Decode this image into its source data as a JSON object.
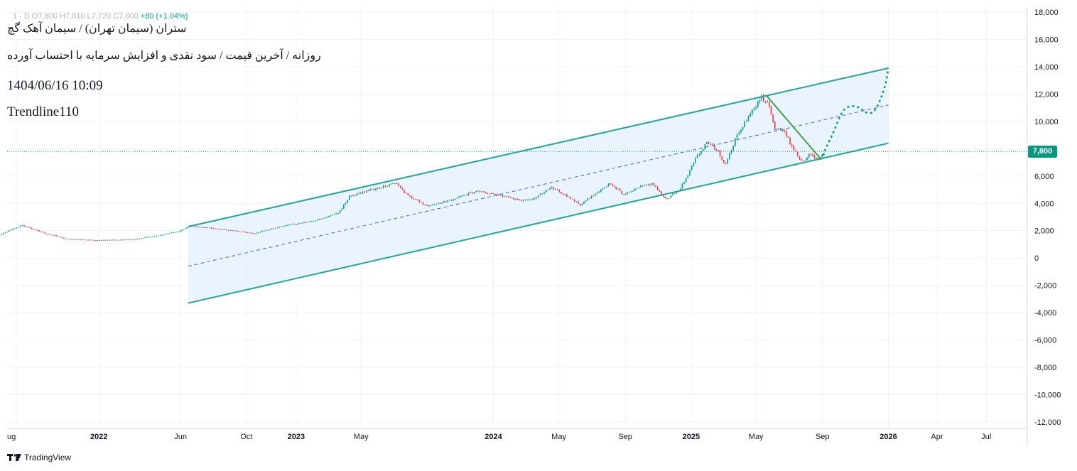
{
  "header": {
    "ohlc_text": "1 · D O7,800 H7,810 L7,720 C7,800",
    "change_text": "+80 (+1.04%)"
  },
  "info": {
    "line1": "ستران (سیمان تهران) / سیمان آهک گچ",
    "line2": "روزانه / آخرین قیمت / سود نقدی و افزایش سرمایه با احتساب آورده",
    "line3": "1404/06/16 10:09",
    "line4": "Trendline110"
  },
  "price_badge": "7,800",
  "brand": {
    "name": "TradingView",
    "logo_icon": "tradingview-logo-icon"
  },
  "colors": {
    "up": "#089981",
    "down": "#f23645",
    "channel": "#26a69a",
    "channel_fill": "#e3f0fd",
    "midline": "#3d64d8",
    "downtrend": "#43a047",
    "grid": "#f0f3fa"
  },
  "chart_data": {
    "type": "line",
    "title": "",
    "xlabel": "",
    "ylabel": "",
    "ylim": [
      -12000,
      18000
    ],
    "grid": true,
    "y_ticks": [
      "18,000",
      "16,000",
      "14,000",
      "12,000",
      "10,000",
      "8,000",
      "6,000",
      "4,000",
      "2,000",
      "0",
      "-2,000",
      "-4,000",
      "-6,000",
      "-8,000",
      "-10,000",
      "-12,000"
    ],
    "y_tick_values": [
      18000,
      16000,
      14000,
      12000,
      10000,
      8000,
      6000,
      4000,
      2000,
      0,
      -2000,
      -4000,
      -6000,
      -8000,
      -10000,
      -12000
    ],
    "x_ticks": [
      {
        "label": "ug",
        "date": "2021-08-01",
        "bold": false
      },
      {
        "label": "2022",
        "date": "2022-01-01",
        "bold": true
      },
      {
        "label": "Jun",
        "date": "2022-06-01",
        "bold": false
      },
      {
        "label": "Oct",
        "date": "2022-10-01",
        "bold": false
      },
      {
        "label": "2023",
        "date": "2023-01-01",
        "bold": true
      },
      {
        "label": "May",
        "date": "2023-05-01",
        "bold": false
      },
      {
        "label": "2024",
        "date": "2024-01-01",
        "bold": true
      },
      {
        "label": "May",
        "date": "2024-05-01",
        "bold": false
      },
      {
        "label": "Sep",
        "date": "2024-09-01",
        "bold": false
      },
      {
        "label": "2025",
        "date": "2025-01-01",
        "bold": true
      },
      {
        "label": "May",
        "date": "2025-05-01",
        "bold": false
      },
      {
        "label": "Sep",
        "date": "2025-09-01",
        "bold": false
      },
      {
        "label": "2026",
        "date": "2026-01-01",
        "bold": true
      },
      {
        "label": "Apr",
        "date": "2026-04-01",
        "bold": false
      },
      {
        "label": "Jul",
        "date": "2026-07-01",
        "bold": false
      }
    ],
    "series": [
      {
        "values_date": [
          "2021-07-01",
          "2021-08-10",
          "2021-09-15",
          "2021-11-01",
          "2022-01-01",
          "2022-03-01",
          "2022-04-15",
          "2022-06-01",
          "2022-06-20",
          "2022-08-15",
          "2022-10-15",
          "2022-12-01",
          "2023-01-15",
          "2023-02-20",
          "2023-03-20",
          "2023-04-10",
          "2023-05-10",
          "2023-06-10",
          "2023-07-05",
          "2023-07-25",
          "2023-09-01",
          "2023-10-10",
          "2023-12-01",
          "2024-01-10",
          "2024-02-20",
          "2024-03-20",
          "2024-04-15",
          "2024-05-05",
          "2024-06-10",
          "2024-07-10",
          "2024-08-05",
          "2024-08-30",
          "2024-09-30",
          "2024-10-20",
          "2024-11-15",
          "2024-12-10",
          "2024-12-25",
          "2025-01-10",
          "2025-02-01",
          "2025-02-20",
          "2025-03-05",
          "2025-03-25",
          "2025-04-15",
          "2025-05-10",
          "2025-05-25",
          "2025-06-05",
          "2025-06-20",
          "2025-07-05",
          "2025-07-25",
          "2025-08-10",
          "2025-08-25",
          "2025-09-07"
        ],
        "values": [
          1700,
          2400,
          1900,
          1400,
          1300,
          1350,
          1600,
          2000,
          2350,
          2100,
          1800,
          2300,
          2600,
          2900,
          3300,
          4500,
          4900,
          5200,
          5500,
          4600,
          3800,
          4200,
          4900,
          4600,
          4200,
          4400,
          5200,
          4800,
          3900,
          4800,
          5500,
          4600,
          5300,
          5500,
          4300,
          5000,
          6000,
          7300,
          8500,
          7800,
          6800,
          8800,
          10200,
          11800,
          11200,
          9300,
          9500,
          8200,
          7100,
          7600,
          7300,
          7800
        ]
      }
    ],
    "channel": {
      "upper": {
        "x": [
          "2022-06-15",
          "2026-01-01"
        ],
        "y": [
          2300,
          13900
        ]
      },
      "middle": {
        "x": [
          "2022-06-15",
          "2026-01-01"
        ],
        "y": [
          -600,
          11200
        ]
      },
      "lower": {
        "x": [
          "2022-06-15",
          "2026-01-01"
        ],
        "y": [
          -3300,
          8400
        ]
      }
    },
    "downtrend_line": {
      "x": [
        "2025-05-20",
        "2025-08-30"
      ],
      "y": [
        11900,
        7200
      ]
    },
    "projection_path": {
      "x": [
        "2025-09-01",
        "2025-09-20",
        "2025-10-10",
        "2025-11-01",
        "2025-11-25",
        "2025-12-10",
        "2025-12-25",
        "2026-01-01"
      ],
      "y": [
        7500,
        9100,
        10800,
        11100,
        10600,
        11000,
        12500,
        13900
      ]
    },
    "last_price": 7800,
    "legend": "none"
  }
}
